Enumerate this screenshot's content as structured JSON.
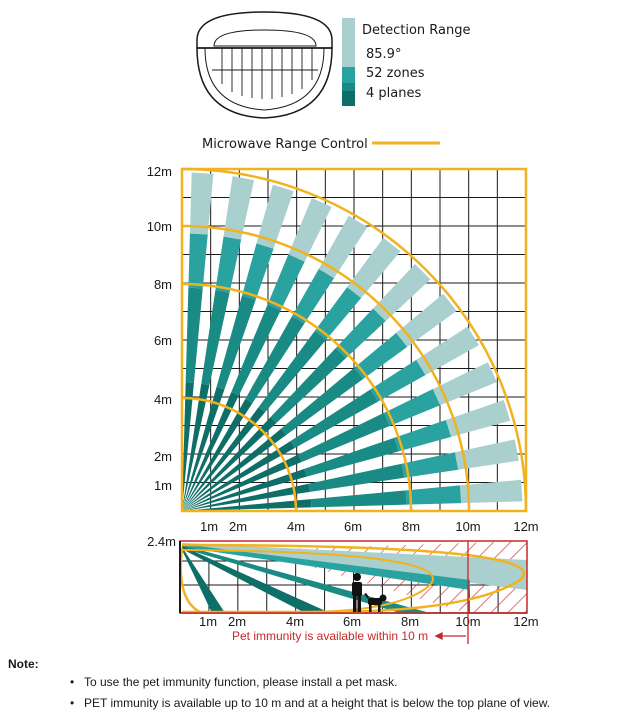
{
  "legend": {
    "title": "Detection Range",
    "angle": "85.9°",
    "zones": "52 zones",
    "planes": "4 planes",
    "microwave": "Microwave Range Control"
  },
  "colors": {
    "plane_far": "#a9cfcf",
    "plane_mid": "#2aa3a0",
    "plane_near": "#1a8a84",
    "plane_down": "#0e6e68",
    "microwave": "#f2b21d",
    "pet_limit": "#c62828",
    "grid": "#1a1a1a"
  },
  "top_view": {
    "y_labels": [
      "12m",
      "10m",
      "8m",
      "6m",
      "4m",
      "2m",
      "1m"
    ],
    "x_labels": [
      "1m",
      "2m",
      "4m",
      "6m",
      "8m",
      "10m",
      "12m"
    ]
  },
  "side_view": {
    "height_label": "2.4m",
    "x_labels": [
      "1m",
      "2m",
      "4m",
      "6m",
      "8m",
      "10m",
      "12m"
    ],
    "pet_text": "Pet immunity is available within 10 m"
  },
  "note": {
    "title": "Note:",
    "items": [
      "To use the pet immunity function, please install a pet mask.",
      "PET immunity is available up to 10 m and at a height that is below the top plane of view."
    ]
  }
}
